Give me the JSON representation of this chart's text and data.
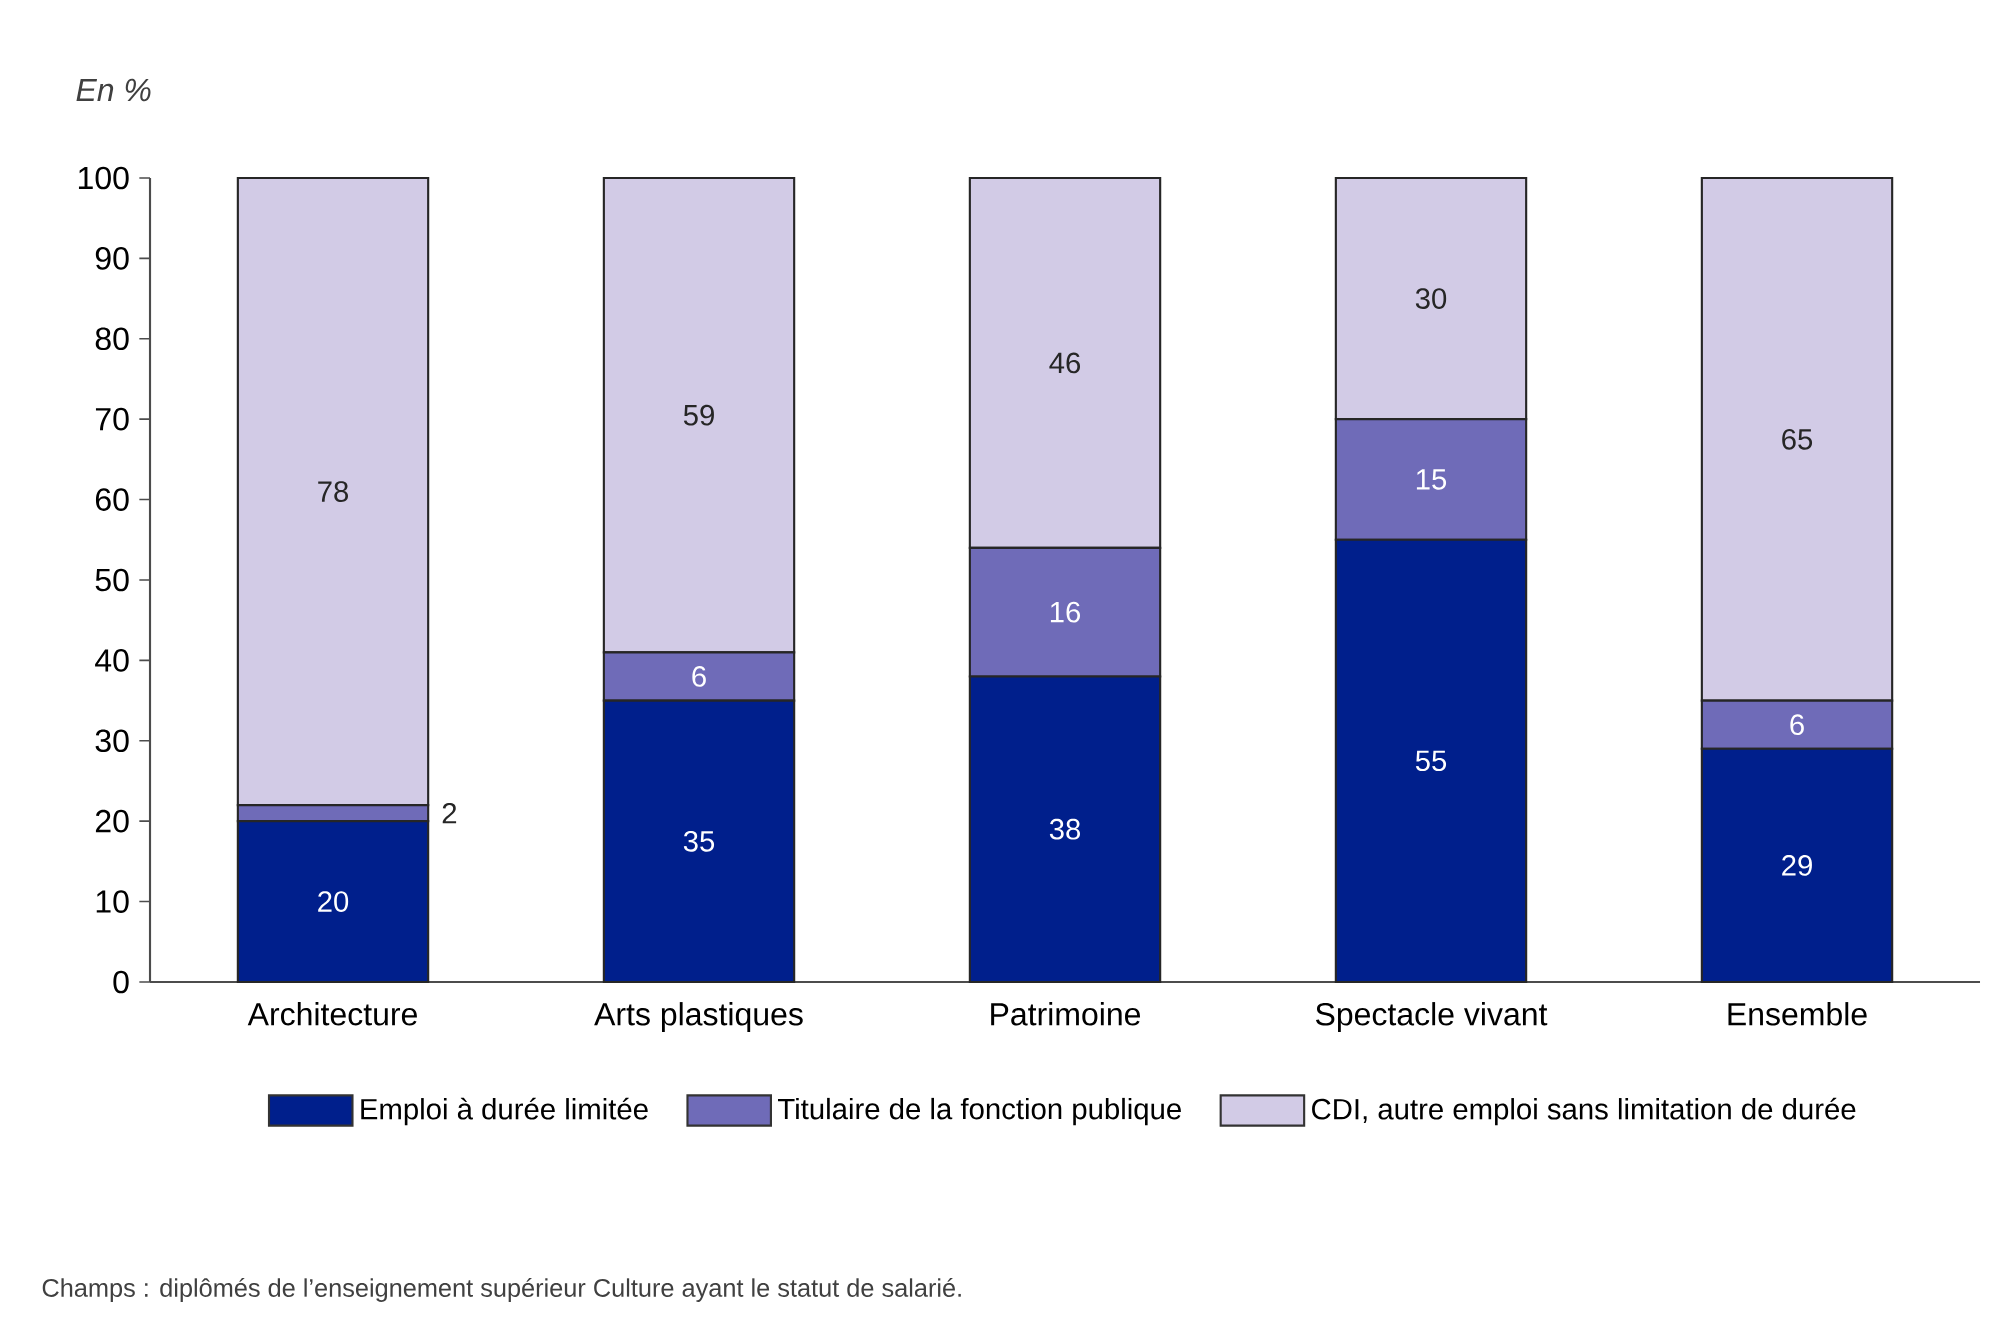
{
  "chart_data": {
    "type": "bar",
    "stacked": true,
    "ylabel": "En %",
    "categories": [
      "Architecture",
      "Arts plastiques",
      "Patrimoine",
      "Spectacle vivant",
      "Ensemble"
    ],
    "series": [
      {
        "name": "Emploi à durée limitée",
        "color": "#001f8c",
        "values": [
          20,
          35,
          38,
          55,
          29
        ],
        "value_labels": [
          "20",
          "35",
          "38",
          "55",
          "29"
        ]
      },
      {
        "name": "Titulaire de la fonction publique",
        "color": "#6f6bb8",
        "values": [
          2,
          6,
          16,
          15,
          6
        ],
        "value_labels": [
          "2",
          "6",
          "16",
          "15",
          "6"
        ]
      },
      {
        "name": "CDI, autre emploi sans limitation de durée",
        "color": "#d2cbe6",
        "values": [
          78,
          59,
          46,
          30,
          65
        ],
        "value_labels": [
          "78",
          "59",
          "46",
          "30",
          "65"
        ]
      }
    ],
    "ylim": [
      0,
      100
    ],
    "yticks": [
      0,
      10,
      20,
      30,
      40,
      50,
      60,
      70,
      80,
      90,
      100
    ],
    "grid": false,
    "legend": "bottom",
    "annotations": [
      "Champs : diplômés de l’enseignement supérieur Culture ayant le statut de salarié."
    ]
  }
}
